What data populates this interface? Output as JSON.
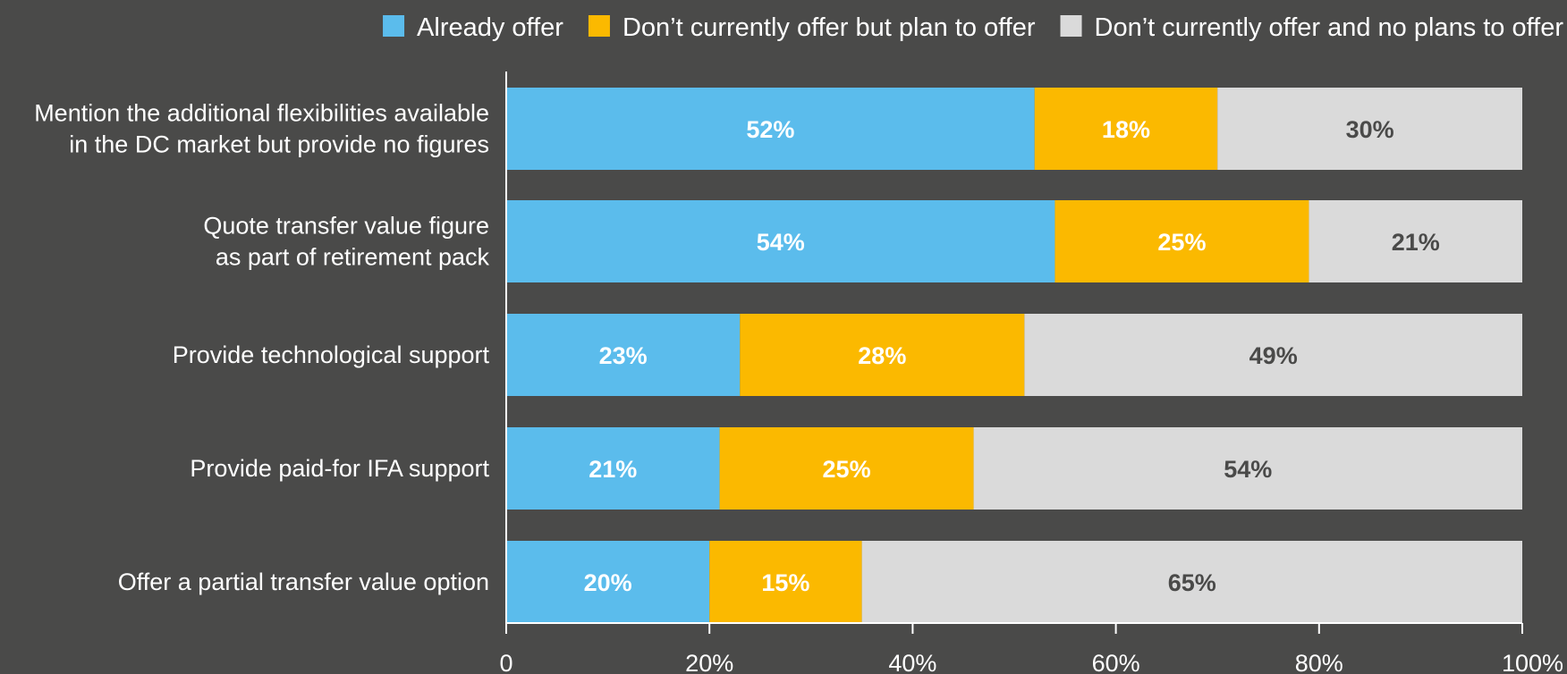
{
  "chart_data": {
    "type": "bar",
    "orientation": "horizontal",
    "stacked": true,
    "title": "",
    "xlabel": "",
    "ylabel": "",
    "xlim": [
      0,
      100
    ],
    "x_ticks": [
      "0",
      "20%",
      "40%",
      "60%",
      "80%",
      "100%"
    ],
    "x_tick_values": [
      0,
      20,
      40,
      60,
      80,
      100
    ],
    "grid": false,
    "legend_position": "top-right",
    "categories": [
      [
        "Mention the additional flexibilities available",
        "in the DC market but provide no figures"
      ],
      [
        "Quote transfer value figure",
        "as part of retirement pack"
      ],
      [
        "Provide technological support"
      ],
      [
        "Provide paid-for IFA support"
      ],
      [
        "Offer a partial transfer value option"
      ]
    ],
    "series": [
      {
        "name": "Already offer",
        "color": "#5bbcec",
        "label_color": "#ffffff",
        "values": [
          52,
          54,
          23,
          21,
          20
        ],
        "labels": [
          "52%",
          "54%",
          "23%",
          "21%",
          "20%"
        ]
      },
      {
        "name": "Don’t currently offer but plan to offer",
        "color": "#fbb900",
        "label_color": "#ffffff",
        "values": [
          18,
          25,
          28,
          25,
          15
        ],
        "labels": [
          "18%",
          "25%",
          "28%",
          "25%",
          "15%"
        ]
      },
      {
        "name": "Don’t currently offer and no plans to offer",
        "color": "#dadada",
        "label_color": "#4a4a49",
        "values": [
          30,
          21,
          49,
          54,
          65
        ],
        "labels": [
          "30%",
          "21%",
          "49%",
          "54%",
          "65%"
        ]
      }
    ],
    "axis_color": "#ffffff",
    "background": "#4a4a49"
  }
}
